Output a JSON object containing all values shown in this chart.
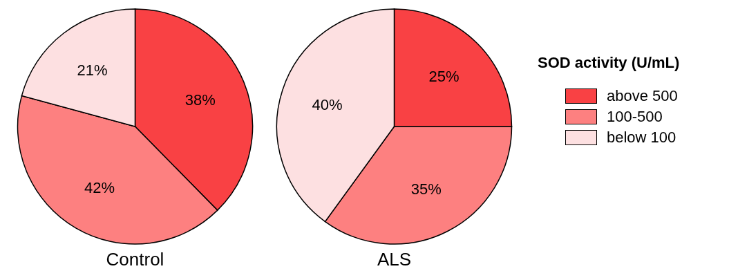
{
  "chart_data": [
    {
      "type": "pie",
      "title": "Control",
      "categories": [
        null,
        null,
        null
      ],
      "values": [
        38,
        42,
        21
      ],
      "value_labels": [
        "38%",
        "42%",
        "21%"
      ],
      "colors": [
        "#f94144",
        "#fd8080",
        "#fde0e1"
      ],
      "legend": false
    },
    {
      "type": "pie",
      "title": "ALS",
      "categories": [
        "above 500",
        "100-500",
        "below 100"
      ],
      "values": [
        25,
        35,
        40
      ],
      "value_labels": [
        "25%",
        "35%",
        "40%"
      ],
      "colors": [
        "#f94144",
        "#fd8080",
        "#fde0e1"
      ],
      "legend": "right",
      "legend_title": "SOD activity (U/mL)"
    }
  ]
}
